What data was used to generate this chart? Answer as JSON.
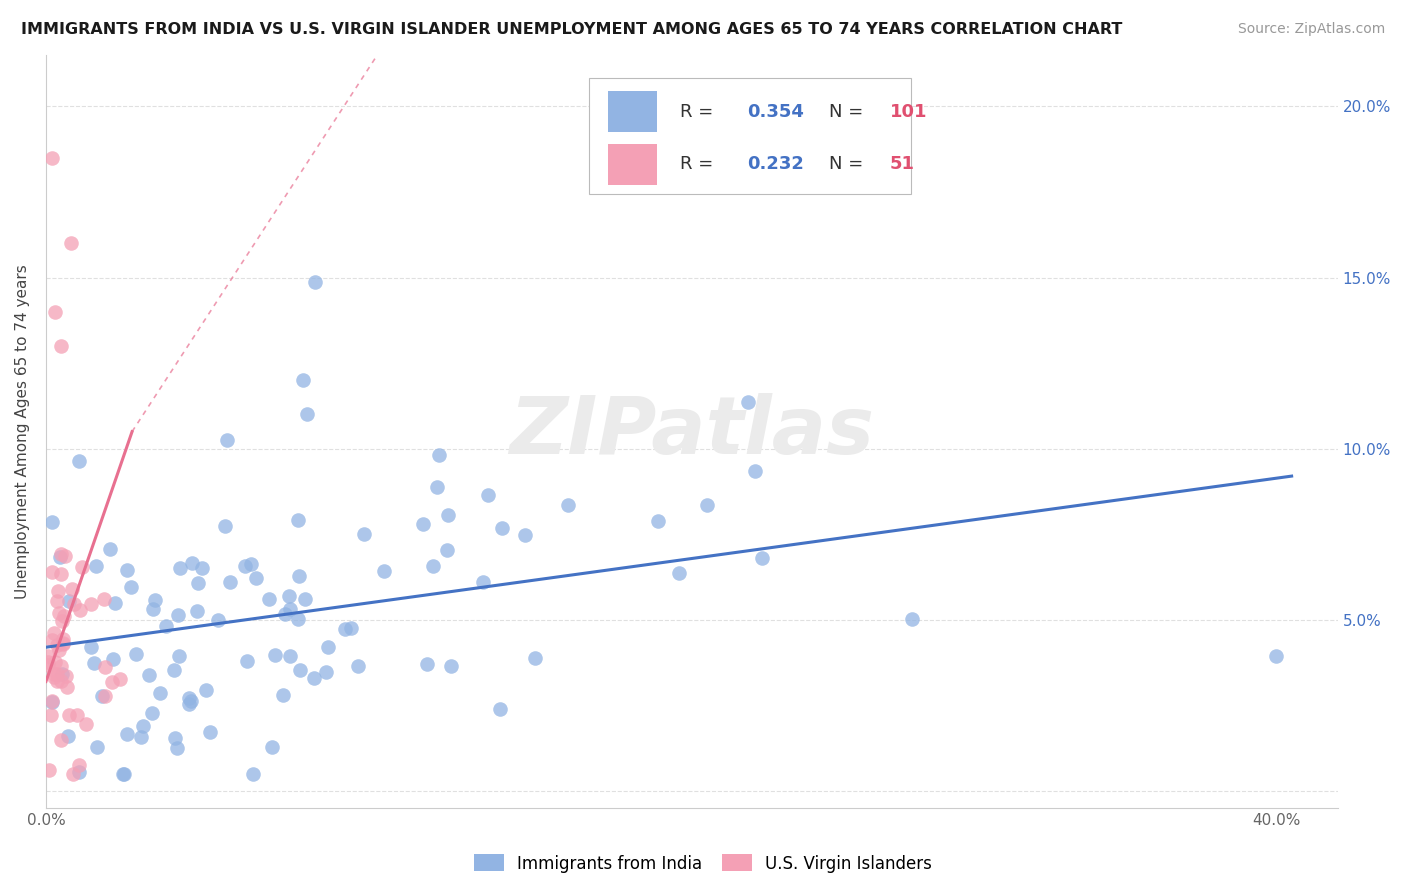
{
  "title": "IMMIGRANTS FROM INDIA VS U.S. VIRGIN ISLANDER UNEMPLOYMENT AMONG AGES 65 TO 74 YEARS CORRELATION CHART",
  "source": "Source: ZipAtlas.com",
  "ylabel": "Unemployment Among Ages 65 to 74 years",
  "xlim": [
    0.0,
    0.42
  ],
  "ylim": [
    -0.005,
    0.215
  ],
  "xtick_positions": [
    0.0,
    0.05,
    0.1,
    0.15,
    0.2,
    0.25,
    0.3,
    0.35,
    0.4
  ],
  "xticklabels": [
    "0.0%",
    "",
    "",
    "",
    "",
    "",
    "",
    "",
    "40.0%"
  ],
  "ytick_positions": [
    0.0,
    0.05,
    0.1,
    0.15,
    0.2
  ],
  "yticklabels_right": [
    "",
    "5.0%",
    "10.0%",
    "15.0%",
    "20.0%"
  ],
  "legend1_label": "Immigrants from India",
  "legend2_label": "U.S. Virgin Islanders",
  "R1": 0.354,
  "N1": 101,
  "R2": 0.232,
  "N2": 51,
  "color1": "#92b4e3",
  "color2": "#f4a0b5",
  "trendline1_color": "#4472c4",
  "trendline2_color": "#e87090",
  "watermark": "ZIPatlas",
  "grid_color": "#e0e0e0",
  "spine_color": "#cccccc",
  "title_fontsize": 11.5,
  "source_fontsize": 10,
  "tick_fontsize": 11,
  "ylabel_fontsize": 11,
  "legend_fontsize": 13
}
